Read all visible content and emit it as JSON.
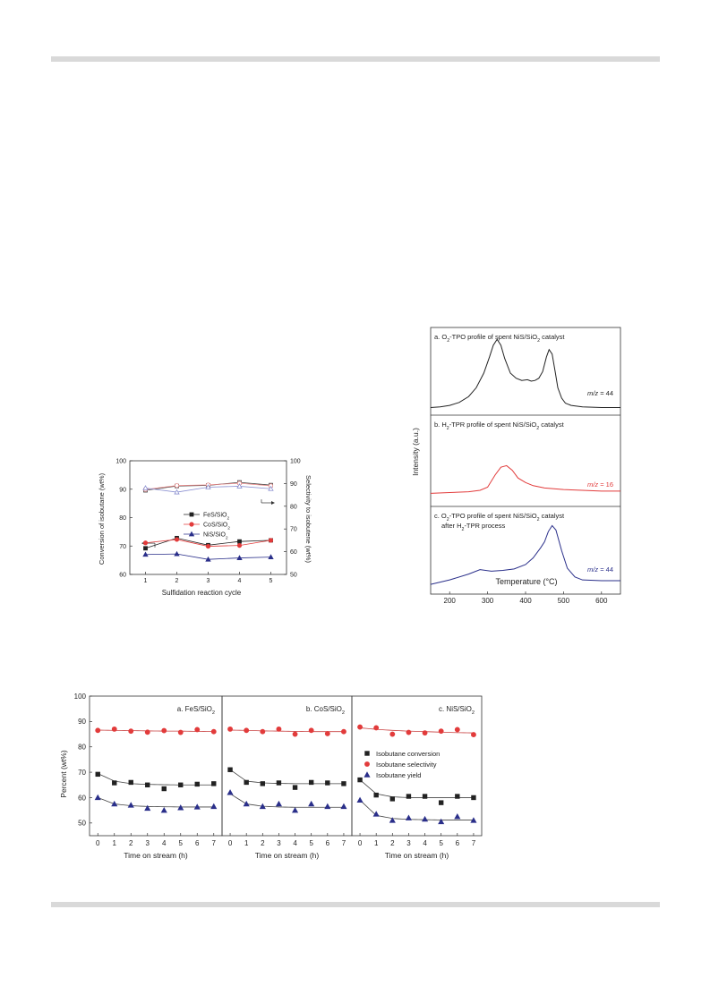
{
  "chart_data": [
    {
      "type": "line",
      "xlabel": "Sulfidation reaction cycle",
      "ylabel_left": "Conversion of isobutane (wt%)",
      "ylabel_right": "Selectivity to isobutene (wt%)",
      "x": [
        1,
        2,
        3,
        4,
        5
      ],
      "xlim": [
        0.5,
        5.5
      ],
      "ylim_left": [
        60,
        100
      ],
      "ylim_right": [
        50,
        100
      ],
      "yticks_left": [
        60,
        70,
        80,
        90,
        100
      ],
      "yticks_right": [
        50,
        60,
        70,
        80,
        90,
        100
      ],
      "legend": [
        "FeS/SiO2",
        "CoS/SiO2",
        "NiS/SiO2"
      ],
      "legend_text": [
        {
          "base": "FeS/SiO",
          "sub": "2"
        },
        {
          "base": "CoS/SiO",
          "sub": "2"
        },
        {
          "base": "NiS/SiO",
          "sub": "2"
        }
      ],
      "conversion_series": [
        {
          "name": "FeS/SiO2",
          "color": "#222222",
          "marker": "square",
          "values": [
            69.2,
            72.8,
            70.3,
            71.6,
            72.0
          ]
        },
        {
          "name": "CoS/SiO2",
          "color": "#e23b3b",
          "marker": "circle",
          "values": [
            71.1,
            72.3,
            69.9,
            70.2,
            72.0
          ]
        },
        {
          "name": "NiS/SiO2",
          "color": "#2a2f8a",
          "marker": "triangle",
          "values": [
            67.0,
            67.2,
            65.3,
            65.8,
            66.1
          ]
        }
      ],
      "selectivity_series": [
        {
          "name": "FeS/SiO2",
          "color": "#444444",
          "marker": "square",
          "values": [
            87.0,
            88.9,
            89.2,
            90.5,
            89.3
          ]
        },
        {
          "name": "CoS/SiO2",
          "color": "#e88a8a",
          "marker": "circle",
          "values": [
            87.4,
            89.1,
            89.4,
            90.1,
            89.0
          ]
        },
        {
          "name": "NiS/SiO2",
          "color": "#8a8fd0",
          "marker": "triangle",
          "values": [
            88.0,
            86.2,
            88.4,
            88.8,
            87.7
          ]
        }
      ]
    },
    {
      "type": "line",
      "xlabel": "Temperature (°C)",
      "ylabel": "Intensity (a.u.)",
      "xlim": [
        150,
        650
      ],
      "xticks": [
        200,
        300,
        400,
        500,
        600
      ],
      "panels": [
        {
          "title": {
            "prefix": "a. O",
            "sub": "2",
            "rest": "-TPO profile of spent NiS/SiO",
            "sub2": "2",
            "rest2": " catalyst"
          },
          "title2": "",
          "mz_label": "m/z",
          "mz_value": " = 44",
          "color": "#222222",
          "ylim": [
            0,
            1
          ],
          "x": [
            150,
            175,
            200,
            225,
            250,
            270,
            290,
            305,
            315,
            325,
            335,
            345,
            360,
            375,
            390,
            405,
            415,
            425,
            435,
            445,
            455,
            462,
            470,
            478,
            485,
            495,
            505,
            520,
            550,
            600,
            650
          ],
          "y": [
            0.03,
            0.04,
            0.06,
            0.1,
            0.18,
            0.3,
            0.5,
            0.72,
            0.88,
            0.96,
            0.88,
            0.7,
            0.5,
            0.43,
            0.4,
            0.41,
            0.39,
            0.4,
            0.43,
            0.52,
            0.72,
            0.82,
            0.76,
            0.52,
            0.3,
            0.16,
            0.09,
            0.06,
            0.04,
            0.03,
            0.03
          ]
        },
        {
          "title": {
            "prefix": "b. H",
            "sub": "2",
            "rest": "-TPR profile of spent NiS/SiO",
            "sub2": "2",
            "rest2": " catalyst"
          },
          "title2": "",
          "mz_label": "m/z",
          "mz_value": " = 16",
          "color": "#e23b3b",
          "ylim": [
            0,
            1
          ],
          "x": [
            150,
            200,
            250,
            280,
            300,
            320,
            335,
            350,
            365,
            380,
            400,
            420,
            450,
            500,
            550,
            600,
            650
          ],
          "y": [
            0.1,
            0.11,
            0.12,
            0.14,
            0.18,
            0.34,
            0.44,
            0.46,
            0.4,
            0.3,
            0.24,
            0.2,
            0.17,
            0.15,
            0.14,
            0.13,
            0.13
          ]
        },
        {
          "title": {
            "prefix": "c. O",
            "sub": "2",
            "rest": "-TPO profile of spent NiS/SiO",
            "sub2": "2",
            "rest2": " catalyst"
          },
          "title2": {
            "prefix": "after H",
            "sub": "2",
            "rest": "-TPR  process"
          },
          "mz_label": "m/z",
          "mz_value": " = 44",
          "color": "#2a2f8a",
          "ylim": [
            0,
            1
          ],
          "x": [
            150,
            200,
            250,
            280,
            310,
            340,
            370,
            400,
            420,
            440,
            450,
            460,
            470,
            480,
            495,
            510,
            530,
            550,
            600,
            650
          ],
          "y": [
            0.06,
            0.12,
            0.2,
            0.26,
            0.24,
            0.25,
            0.27,
            0.33,
            0.42,
            0.56,
            0.64,
            0.78,
            0.86,
            0.8,
            0.52,
            0.28,
            0.16,
            0.12,
            0.11,
            0.11
          ]
        }
      ]
    },
    {
      "type": "scatter",
      "ylabel": "Percent (wt%)",
      "ylim": [
        45,
        100
      ],
      "yticks": [
        50,
        60,
        70,
        80,
        90,
        100
      ],
      "xlim": [
        -0.5,
        7.5
      ],
      "xticks": [
        0,
        1,
        2,
        3,
        4,
        5,
        6,
        7
      ],
      "legend": [
        "Isobutane conversion",
        "Isobutane selectivity",
        "Isobutane yield"
      ],
      "panels": [
        {
          "title": {
            "prefix": "a. FeS/SiO",
            "sub": "2"
          },
          "xlabel": "Time on stream (h)",
          "x": [
            0,
            1,
            2,
            3,
            4,
            5,
            6,
            7
          ],
          "series": [
            {
              "name": "Isobutane conversion",
              "color": "#222222",
              "marker": "square",
              "values": [
                69.2,
                65.8,
                66.0,
                65.0,
                63.5,
                65.0,
                65.3,
                65.5
              ],
              "fit": [
                69.5,
                66.5,
                65.5,
                65.2,
                65.1,
                65.0,
                65.0,
                65.0
              ]
            },
            {
              "name": "Isobutane selectivity",
              "color": "#e23b3b",
              "marker": "circle",
              "values": [
                86.5,
                87.0,
                86.2,
                85.8,
                86.4,
                85.7,
                86.8,
                86.0
              ],
              "fit": [
                86.6,
                86.5,
                86.4,
                86.3,
                86.2,
                86.2,
                86.1,
                86.0
              ]
            },
            {
              "name": "Isobutane yield",
              "color": "#2a2f8a",
              "marker": "triangle",
              "values": [
                60.0,
                57.5,
                57.0,
                55.8,
                55.0,
                56.0,
                56.3,
                56.5
              ],
              "fit": [
                60.0,
                57.5,
                56.8,
                56.5,
                56.4,
                56.3,
                56.3,
                56.3
              ]
            }
          ]
        },
        {
          "title": {
            "prefix": "b. CoS/SiO",
            "sub": "2"
          },
          "xlabel": "Time on stream (h)",
          "x": [
            0,
            1,
            2,
            3,
            4,
            5,
            6,
            7
          ],
          "series": [
            {
              "name": "Isobutane conversion",
              "color": "#222222",
              "marker": "square",
              "values": [
                71.0,
                66.0,
                65.5,
                65.8,
                64.0,
                66.0,
                65.8,
                65.5
              ],
              "fit": [
                71.0,
                66.5,
                65.8,
                65.6,
                65.5,
                65.5,
                65.5,
                65.5
              ]
            },
            {
              "name": "Isobutane selectivity",
              "color": "#e23b3b",
              "marker": "circle",
              "values": [
                87.0,
                86.5,
                86.0,
                87.0,
                85.0,
                86.5,
                85.2,
                86.0
              ],
              "fit": [
                86.6,
                86.5,
                86.3,
                86.2,
                86.1,
                86.0,
                86.0,
                86.0
              ]
            },
            {
              "name": "Isobutane yield",
              "color": "#2a2f8a",
              "marker": "triangle",
              "values": [
                62.0,
                57.5,
                56.5,
                57.5,
                55.0,
                57.5,
                56.5,
                56.5
              ],
              "fit": [
                61.5,
                57.5,
                56.6,
                56.3,
                56.2,
                56.2,
                56.2,
                56.2
              ]
            }
          ]
        },
        {
          "title": {
            "prefix": "c. NiS/SiO",
            "sub": "2"
          },
          "xlabel": "Time on stream (h)",
          "x": [
            0,
            1,
            2,
            3,
            4,
            5,
            6,
            7
          ],
          "series": [
            {
              "name": "Isobutane conversion",
              "color": "#222222",
              "marker": "square",
              "values": [
                67.0,
                61.0,
                59.5,
                60.5,
                60.5,
                58.0,
                60.5,
                60.0
              ],
              "fit": [
                67.0,
                61.5,
                60.3,
                60.0,
                60.0,
                60.0,
                60.0,
                60.0
              ]
            },
            {
              "name": "Isobutane selectivity",
              "color": "#e23b3b",
              "marker": "circle",
              "values": [
                87.8,
                87.5,
                85.0,
                85.7,
                85.5,
                86.2,
                86.8,
                84.8
              ],
              "fit": [
                87.5,
                86.9,
                86.5,
                86.2,
                86.0,
                85.8,
                85.6,
                85.5
              ]
            },
            {
              "name": "Isobutane yield",
              "color": "#2a2f8a",
              "marker": "triangle",
              "values": [
                59.0,
                53.5,
                51.0,
                52.0,
                51.5,
                50.5,
                52.5,
                51.0
              ],
              "fit": [
                59.0,
                53.0,
                51.8,
                51.4,
                51.3,
                51.2,
                51.2,
                51.2
              ]
            }
          ]
        }
      ]
    }
  ]
}
